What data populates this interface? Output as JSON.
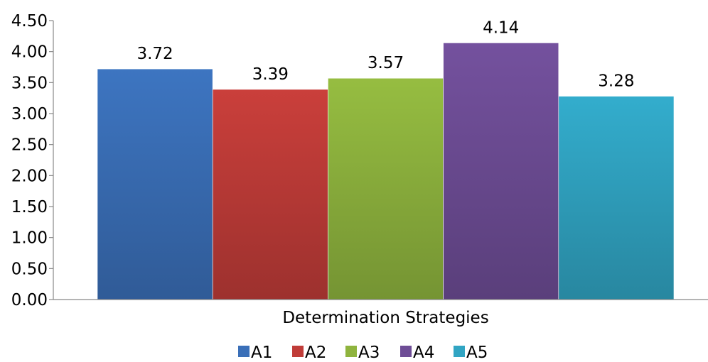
{
  "chart_data": {
    "type": "bar",
    "categories": [
      "Determination Strategies"
    ],
    "series": [
      {
        "name": "A1",
        "values": [
          3.72
        ],
        "color": "#3a6fb8"
      },
      {
        "name": "A2",
        "values": [
          3.39
        ],
        "color": "#c03c38"
      },
      {
        "name": "A3",
        "values": [
          3.57
        ],
        "color": "#8fb43e"
      },
      {
        "name": "A4",
        "values": [
          4.14
        ],
        "color": "#6e4d96"
      },
      {
        "name": "A5",
        "values": [
          3.28
        ],
        "color": "#31a5c3"
      }
    ],
    "data_labels": [
      "3.72",
      "3.39",
      "3.57",
      "4.14",
      "3.28"
    ],
    "y_ticks": [
      "0.00",
      "0.50",
      "1.00",
      "1.50",
      "2.00",
      "2.50",
      "3.00",
      "3.50",
      "4.00",
      "4.50"
    ],
    "ylim": [
      0,
      4.5
    ],
    "grid": false,
    "legend_position": "bottom",
    "title": "",
    "xlabel": "",
    "ylabel": ""
  }
}
